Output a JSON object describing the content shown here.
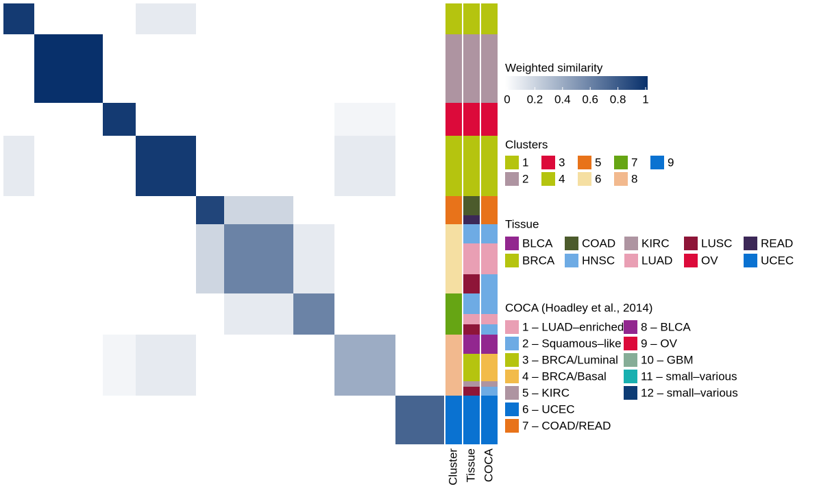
{
  "chart_data": {
    "type": "heatmap",
    "clusters": [
      {
        "name": "1",
        "size": 45
      },
      {
        "name": "2",
        "size": 100
      },
      {
        "name": "3",
        "size": 48
      },
      {
        "name": "4",
        "size": 88
      },
      {
        "name": "5",
        "size": 41
      },
      {
        "name": "6",
        "size": 101
      },
      {
        "name": "7",
        "size": 60
      },
      {
        "name": "8",
        "size": 89
      },
      {
        "name": "9",
        "size": 71
      }
    ],
    "values": [
      [
        0.95,
        0,
        0,
        0.1,
        0,
        0,
        0,
        0,
        0
      ],
      [
        0,
        1,
        0,
        0,
        0,
        0,
        0,
        0,
        0
      ],
      [
        0,
        0,
        0.95,
        0,
        0,
        0,
        0,
        0.05,
        0
      ],
      [
        0.1,
        0,
        0,
        0.95,
        0,
        0,
        0,
        0.1,
        0
      ],
      [
        0,
        0,
        0,
        0,
        0.9,
        0.2,
        0,
        0,
        0
      ],
      [
        0,
        0,
        0,
        0,
        0.2,
        0.6,
        0.1,
        0,
        0
      ],
      [
        0,
        0,
        0,
        0,
        0,
        0.1,
        0.6,
        0,
        0
      ],
      [
        0,
        0,
        0.05,
        0.1,
        0,
        0,
        0,
        0.4,
        0
      ],
      [
        0,
        0,
        0,
        0,
        0,
        0,
        0,
        0,
        0.75
      ]
    ],
    "colorbar": {
      "title": "Weighted similarity",
      "range": [
        0,
        1
      ],
      "ticks": [
        0,
        0.2,
        0.4,
        0.6,
        0.8,
        1
      ],
      "colors": [
        "#ffffff",
        "#08306b"
      ]
    },
    "annotation_columns": [
      "Cluster",
      "Tissue",
      "COCA"
    ],
    "legends": [
      {
        "title": "Clusters",
        "rows": 2,
        "items": [
          {
            "label": "1",
            "color": "#b5c40f"
          },
          {
            "label": "2",
            "color": "#ae94a1"
          },
          {
            "label": "3",
            "color": "#dc0a3a"
          },
          {
            "label": "4",
            "color": "#b5c40f"
          },
          {
            "label": "5",
            "color": "#e8731a"
          },
          {
            "label": "6",
            "color": "#f5dfa2"
          },
          {
            "label": "7",
            "color": "#66a514"
          },
          {
            "label": "8",
            "color": "#f2b98e"
          },
          {
            "label": "9",
            "color": "#0a72d1"
          }
        ]
      },
      {
        "title": "Tissue",
        "rows": 2,
        "items": [
          {
            "label": "BLCA",
            "color": "#92278f"
          },
          {
            "label": "BRCA",
            "color": "#b5c40f"
          },
          {
            "label": "COAD",
            "color": "#4c5b2c"
          },
          {
            "label": "HNSC",
            "color": "#6eabe4"
          },
          {
            "label": "KIRC",
            "color": "#ae94a1"
          },
          {
            "label": "LUAD",
            "color": "#e99fb4"
          },
          {
            "label": "LUSC",
            "color": "#8e1538"
          },
          {
            "label": "OV",
            "color": "#dc0a3a"
          },
          {
            "label": "READ",
            "color": "#3c2857"
          },
          {
            "label": "UCEC",
            "color": "#0a72d1"
          }
        ]
      },
      {
        "title": "COCA (Hoadley et al., 2014)",
        "rows": 7,
        "items": [
          {
            "label": "1 – LUAD–enriched",
            "color": "#e99fb4"
          },
          {
            "label": "2 – Squamous–like",
            "color": "#6eabe4"
          },
          {
            "label": "3 – BRCA/Luminal",
            "color": "#b5c40f"
          },
          {
            "label": "4 – BRCA/Basal",
            "color": "#f2bb4a"
          },
          {
            "label": "5 – KIRC",
            "color": "#ae94a1"
          },
          {
            "label": "6 – UCEC",
            "color": "#0a72d1"
          },
          {
            "label": "7 – COAD/READ",
            "color": "#e8731a"
          },
          {
            "label": "8 – BLCA",
            "color": "#92278f"
          },
          {
            "label": "9 – OV",
            "color": "#dc0a3a"
          },
          {
            "label": "10 – GBM",
            "color": "#86ad97"
          },
          {
            "label": "11 – small–various",
            "color": "#18b0b0"
          },
          {
            "label": "12 – small–various",
            "color": "#0d3c75"
          }
        ]
      }
    ],
    "tissue_segments": [
      {
        "label": "BRCA",
        "size": 45
      },
      {
        "label": "KIRC",
        "size": 100
      },
      {
        "label": "OV",
        "size": 48
      },
      {
        "label": "BRCA",
        "size": 88
      },
      {
        "label": "COAD",
        "size": 28
      },
      {
        "label": "READ",
        "size": 13
      },
      {
        "label": "HNSC",
        "size": 28
      },
      {
        "label": "LUAD",
        "size": 45
      },
      {
        "label": "LUSC",
        "size": 28
      },
      {
        "label": "HNSC",
        "size": 30
      },
      {
        "label": "LUAD",
        "size": 15
      },
      {
        "label": "LUSC",
        "size": 15
      },
      {
        "label": "BLCA",
        "size": 28
      },
      {
        "label": "BRCA",
        "size": 40
      },
      {
        "label": "KIRC",
        "size": 8
      },
      {
        "label": "LUSC",
        "size": 13
      },
      {
        "label": "UCEC",
        "size": 71
      }
    ],
    "coca_segments": [
      {
        "label": "3 – BRCA/Luminal",
        "size": 45
      },
      {
        "label": "5 – KIRC",
        "size": 100
      },
      {
        "label": "9 – OV",
        "size": 48
      },
      {
        "label": "3 – BRCA/Luminal",
        "size": 88
      },
      {
        "label": "7 – COAD/READ",
        "size": 41
      },
      {
        "label": "2 – Squamous–like",
        "size": 28
      },
      {
        "label": "1 – LUAD–enriched",
        "size": 45
      },
      {
        "label": "2 – Squamous–like",
        "size": 28
      },
      {
        "label": "2 – Squamous–like",
        "size": 30
      },
      {
        "label": "1 – LUAD–enriched",
        "size": 15
      },
      {
        "label": "2 – Squamous–like",
        "size": 15
      },
      {
        "label": "8 – BLCA",
        "size": 28
      },
      {
        "label": "4 – BRCA/Basal",
        "size": 40
      },
      {
        "label": "5 – KIRC",
        "size": 8
      },
      {
        "label": "2 – Squamous–like",
        "size": 13
      },
      {
        "label": "6 – UCEC",
        "size": 71
      }
    ]
  }
}
